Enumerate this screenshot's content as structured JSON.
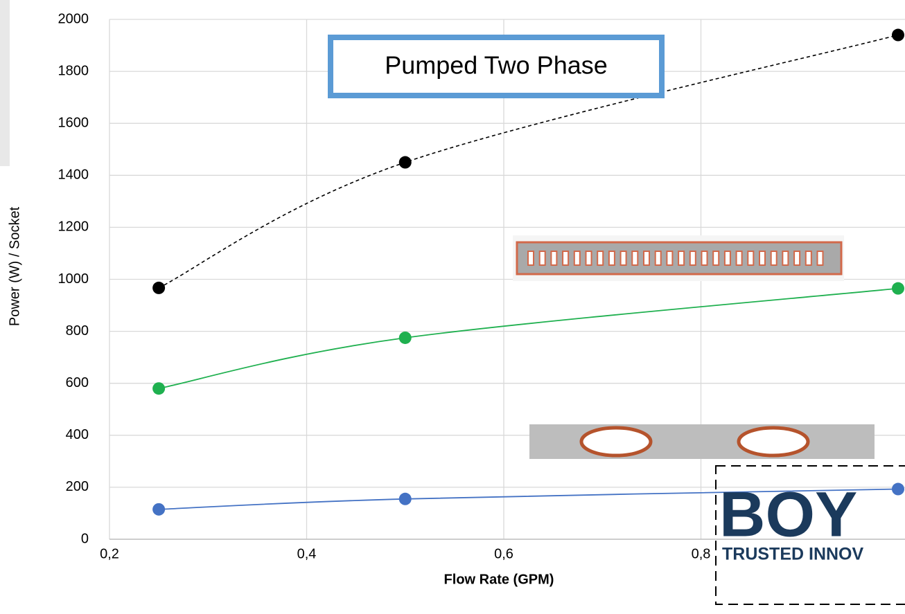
{
  "chart_data": {
    "type": "line",
    "annotations": [
      "Pumped Two Phase"
    ],
    "logo": {
      "name": "BOY",
      "tagline": "TRUSTED INNOV"
    },
    "x_label": "Flow Rate (GPM)",
    "y_label": "Power (W) / Socket",
    "x": [
      0.25,
      0.5,
      1.0
    ],
    "series": [
      {
        "color": "#000000",
        "dash": true,
        "values": [
          967,
          1450,
          1940
        ]
      },
      {
        "color": "#1fb04f",
        "dash": false,
        "values": [
          580,
          775,
          965
        ]
      },
      {
        "color": "#4472c4",
        "dash": false,
        "values": [
          115,
          155,
          193
        ]
      }
    ],
    "xlim": [
      0.2,
      1.0
    ],
    "xticks": [
      {
        "value": 0.2,
        "label": "0,2"
      },
      {
        "value": 0.4,
        "label": "0,4"
      },
      {
        "value": 0.6,
        "label": "0,6"
      },
      {
        "value": 0.8,
        "label": "0,8"
      }
    ],
    "ylim": [
      0,
      2000
    ],
    "yticks": [
      0,
      200,
      400,
      600,
      800,
      1000,
      1200,
      1400,
      1600,
      1800,
      2000
    ],
    "grid": true,
    "smooth": true
  }
}
